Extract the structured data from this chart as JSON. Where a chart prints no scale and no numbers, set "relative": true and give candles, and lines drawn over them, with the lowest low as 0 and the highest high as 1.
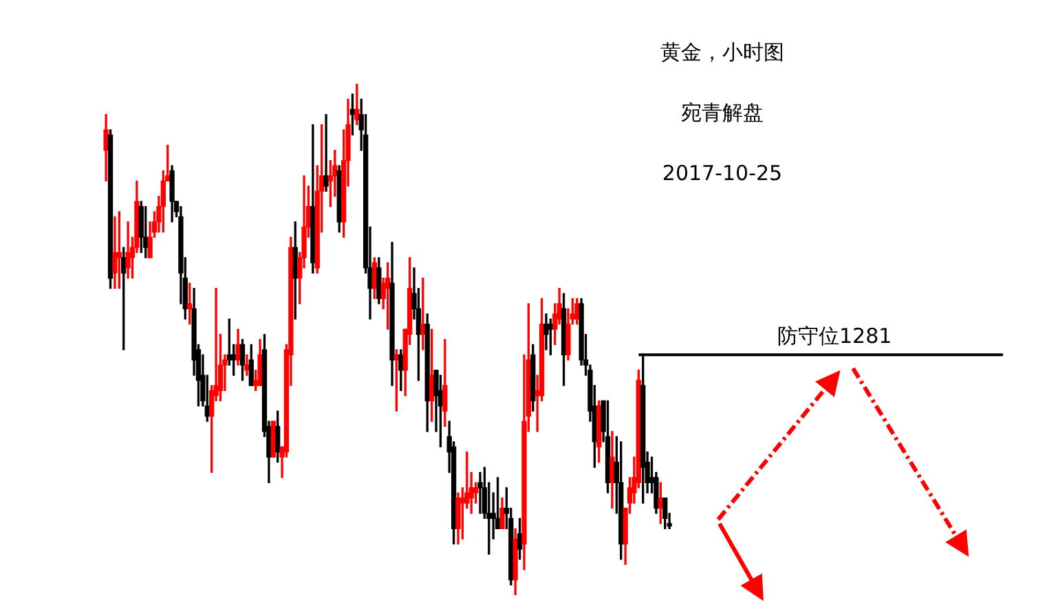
{
  "chart_data": {
    "type": "candlestick",
    "title": "黄金，小时图",
    "subtitle": "宛青解盘",
    "annotations": [
      "2017-10-25"
    ],
    "relative": true,
    "categories": [
      null,
      null,
      null,
      null,
      null,
      null,
      null,
      null,
      null,
      null,
      null,
      null,
      null,
      null,
      null,
      null,
      null,
      null,
      null,
      null,
      null,
      null,
      null,
      null,
      null,
      null,
      null,
      null,
      null,
      null,
      null,
      null,
      null,
      null,
      null,
      null,
      null,
      null,
      null,
      null,
      null,
      null,
      null,
      null,
      null,
      null,
      null,
      null,
      null,
      null,
      null,
      null,
      null,
      null,
      null,
      null,
      null,
      null,
      null,
      null,
      null,
      null,
      null,
      null,
      null,
      null,
      null,
      null,
      null,
      null,
      null,
      null,
      null,
      null,
      null,
      null,
      null,
      null,
      null,
      null,
      null,
      null,
      null,
      null,
      null,
      null,
      null,
      null,
      null,
      null,
      null,
      null,
      null,
      null,
      null,
      null,
      null,
      null,
      null,
      null,
      null,
      null,
      null,
      null,
      null,
      null,
      null,
      null,
      null,
      null,
      null,
      null,
      null,
      null,
      null,
      null,
      null,
      null,
      null,
      null,
      null,
      null,
      null,
      null,
      null,
      null,
      null,
      null,
      null
    ],
    "ohlc": [
      [
        0.87,
        0.94,
        0.81,
        0.91
      ],
      [
        0.9,
        0.91,
        0.6,
        0.62
      ],
      [
        0.63,
        0.74,
        0.6,
        0.67
      ],
      [
        0.66,
        0.75,
        0.6,
        0.67
      ],
      [
        0.66,
        0.68,
        0.48,
        0.63
      ],
      [
        0.64,
        0.73,
        0.62,
        0.67
      ],
      [
        0.66,
        0.7,
        0.62,
        0.68
      ],
      [
        0.68,
        0.81,
        0.67,
        0.77
      ],
      [
        0.76,
        0.77,
        0.67,
        0.7
      ],
      [
        0.7,
        0.76,
        0.66,
        0.68
      ],
      [
        0.66,
        0.73,
        0.66,
        0.7
      ],
      [
        0.71,
        0.75,
        0.7,
        0.73
      ],
      [
        0.73,
        0.78,
        0.71,
        0.76
      ],
      [
        0.76,
        0.83,
        0.71,
        0.81
      ],
      [
        0.81,
        0.88,
        0.81,
        0.82
      ],
      [
        0.83,
        0.84,
        0.73,
        0.77
      ],
      [
        0.77,
        0.77,
        0.74,
        0.75
      ],
      [
        0.74,
        0.76,
        0.57,
        0.63
      ],
      [
        0.62,
        0.66,
        0.54,
        0.56
      ],
      [
        0.56,
        0.61,
        0.53,
        0.57
      ],
      [
        0.56,
        0.6,
        0.43,
        0.46
      ],
      [
        0.48,
        0.49,
        0.37,
        0.42
      ],
      [
        0.43,
        0.47,
        0.37,
        0.38
      ],
      [
        0.37,
        0.43,
        0.34,
        0.35
      ],
      [
        0.35,
        0.41,
        0.24,
        0.4
      ],
      [
        0.39,
        0.6,
        0.38,
        0.41
      ],
      [
        0.4,
        0.51,
        0.38,
        0.45
      ],
      [
        0.45,
        0.47,
        0.4,
        0.46
      ],
      [
        0.47,
        0.54,
        0.45,
        0.46
      ],
      [
        0.47,
        0.49,
        0.43,
        0.46
      ],
      [
        0.46,
        0.52,
        0.45,
        0.49
      ],
      [
        0.49,
        0.5,
        0.42,
        0.45
      ],
      [
        0.44,
        0.47,
        0.43,
        0.45
      ],
      [
        0.46,
        0.49,
        0.41,
        0.41
      ],
      [
        0.41,
        0.44,
        0.4,
        0.42
      ],
      [
        0.41,
        0.5,
        0.41,
        0.47
      ],
      [
        0.48,
        0.51,
        0.31,
        0.32
      ],
      [
        0.33,
        0.34,
        0.22,
        0.27
      ],
      [
        0.27,
        0.34,
        0.27,
        0.34
      ],
      [
        0.33,
        0.36,
        0.26,
        0.28
      ],
      [
        0.27,
        0.29,
        0.23,
        0.29
      ],
      [
        0.28,
        0.49,
        0.27,
        0.48
      ],
      [
        0.47,
        0.7,
        0.41,
        0.68
      ],
      [
        0.68,
        0.73,
        0.54,
        0.62
      ],
      [
        0.62,
        0.67,
        0.57,
        0.66
      ],
      [
        0.66,
        0.82,
        0.64,
        0.72
      ],
      [
        0.72,
        0.8,
        0.7,
        0.76
      ],
      [
        0.76,
        0.92,
        0.63,
        0.65
      ],
      [
        0.64,
        0.84,
        0.63,
        0.79
      ],
      [
        0.79,
        0.92,
        0.71,
        0.82
      ],
      [
        0.82,
        0.94,
        0.79,
        0.8
      ],
      [
        0.81,
        0.85,
        0.76,
        0.82
      ],
      [
        0.82,
        0.87,
        0.78,
        0.84
      ],
      [
        0.83,
        0.84,
        0.71,
        0.73
      ],
      [
        0.73,
        0.91,
        0.7,
        0.85
      ],
      [
        0.85,
        0.97,
        0.8,
        0.92
      ],
      [
        0.95,
        0.98,
        0.9,
        0.94
      ],
      [
        0.93,
        1,
        0.92,
        0.95
      ],
      [
        0.94,
        0.97,
        0.87,
        0.91
      ],
      [
        0.9,
        0.94,
        0.63,
        0.64
      ],
      [
        0.64,
        0.72,
        0.54,
        0.6
      ],
      [
        0.6,
        0.66,
        0.58,
        0.65
      ],
      [
        0.64,
        0.66,
        0.57,
        0.58
      ],
      [
        0.58,
        0.62,
        0.56,
        0.61
      ],
      [
        0.6,
        0.65,
        0.52,
        0.62
      ],
      [
        0.61,
        0.69,
        0.41,
        0.46
      ],
      [
        0.46,
        0.48,
        0.36,
        0.47
      ],
      [
        0.47,
        0.48,
        0.4,
        0.44
      ],
      [
        0.44,
        0.52,
        0.39,
        0.52
      ],
      [
        0.51,
        0.66,
        0.49,
        0.6
      ],
      [
        0.59,
        0.64,
        0.54,
        0.56
      ],
      [
        0.56,
        0.6,
        0.42,
        0.51
      ],
      [
        0.51,
        0.62,
        0.48,
        0.53
      ],
      [
        0.53,
        0.55,
        0.32,
        0.38
      ],
      [
        0.38,
        0.52,
        0.34,
        0.43
      ],
      [
        0.44,
        0.44,
        0.32,
        0.39
      ],
      [
        0.4,
        0.43,
        0.29,
        0.37
      ],
      [
        0.36,
        0.5,
        0.33,
        0.41
      ],
      [
        0.31,
        0.34,
        0.24,
        0.28
      ],
      [
        0.29,
        0.3,
        0.1,
        0.13
      ],
      [
        0.13,
        0.2,
        0.1,
        0.19
      ],
      [
        0.18,
        0.21,
        0.11,
        0.19
      ],
      [
        0.18,
        0.28,
        0.17,
        0.2
      ],
      [
        0.19,
        0.24,
        0.16,
        0.21
      ],
      [
        0.2,
        0.22,
        0.18,
        0.21
      ],
      [
        0.22,
        0.24,
        0.16,
        0.21
      ],
      [
        0.21,
        0.25,
        0.15,
        0.16
      ],
      [
        0.16,
        0.22,
        0.08,
        0.15
      ],
      [
        0.16,
        0.2,
        0.11,
        0.15
      ],
      [
        0.15,
        0.23,
        0.13,
        0.13
      ],
      [
        0.13,
        0.19,
        0.13,
        0.17
      ],
      [
        0.17,
        0.21,
        0.13,
        0.16
      ],
      [
        0.15,
        0.17,
        0.02,
        0.03
      ],
      [
        0.03,
        0.13,
        0,
        0.11
      ],
      [
        0.12,
        0.15,
        0.07,
        0.09
      ],
      [
        0.1,
        0.47,
        0.05,
        0.34
      ],
      [
        0.35,
        0.57,
        0.32,
        0.46
      ],
      [
        0.47,
        0.49,
        0.36,
        0.38
      ],
      [
        0.39,
        0.43,
        0.32,
        0.4
      ],
      [
        0.39,
        0.58,
        0.38,
        0.53
      ],
      [
        0.53,
        0.55,
        0.48,
        0.51
      ],
      [
        0.53,
        0.54,
        0.47,
        0.52
      ],
      [
        0.52,
        0.57,
        0.49,
        0.55
      ],
      [
        0.54,
        0.6,
        0.53,
        0.57
      ],
      [
        0.56,
        0.59,
        0.41,
        0.47
      ],
      [
        0.47,
        0.56,
        0.46,
        0.53
      ],
      [
        0.54,
        0.58,
        0.53,
        0.55
      ],
      [
        0.54,
        0.58,
        0.53,
        0.57
      ],
      [
        0.57,
        0.58,
        0.45,
        0.46
      ],
      [
        0.46,
        0.51,
        0.43,
        0.45
      ],
      [
        0.44,
        0.45,
        0.34,
        0.36
      ],
      [
        0.37,
        0.41,
        0.25,
        0.3
      ],
      [
        0.29,
        0.38,
        0.26,
        0.37
      ],
      [
        0.38,
        0.38,
        0.3,
        0.32
      ],
      [
        0.31,
        0.38,
        0.2,
        0.22
      ],
      [
        0.22,
        0.32,
        0.17,
        0.27
      ],
      [
        0.26,
        0.31,
        0.16,
        0.22
      ],
      [
        0.22,
        0.3,
        0.07,
        0.1
      ],
      [
        0.1,
        0.17,
        0.06,
        0.17
      ],
      [
        0.18,
        0.23,
        0.16,
        0.21
      ],
      [
        0.2,
        0.27,
        0.18,
        0.23
      ],
      [
        0.22,
        0.44,
        0.21,
        0.42
      ],
      [
        0.41,
        0.47,
        0.18,
        0.25
      ],
      [
        0.26,
        0.28,
        0.2,
        0.22
      ],
      [
        0.23,
        0.27,
        0.2,
        0.22
      ],
      [
        0.23,
        0.24,
        0.16,
        0.17
      ],
      [
        0.17,
        0.22,
        0.14,
        0.19
      ],
      [
        0.19,
        0.19,
        0.13,
        0.15
      ],
      [
        0.14,
        0.16,
        0.13,
        0.135
      ]
    ],
    "colors": [
      "#ff0000",
      "#000000",
      "#ff0000",
      "#ff0000",
      "#000000",
      "#ff0000",
      "#ff0000",
      "#ff0000",
      "#000000",
      "#000000",
      "#ff0000",
      "#ff0000",
      "#ff0000",
      "#ff0000",
      "#ff0000",
      "#000000",
      "#000000",
      "#000000",
      "#000000",
      "#ff0000",
      "#000000",
      "#000000",
      "#000000",
      "#000000",
      "#ff0000",
      "#ff0000",
      "#ff0000",
      "#ff0000",
      "#000000",
      "#000000",
      "#ff0000",
      "#000000",
      "#ff0000",
      "#000000",
      "#ff0000",
      "#ff0000",
      "#000000",
      "#000000",
      "#ff0000",
      "#000000",
      "#ff0000",
      "#ff0000",
      "#ff0000",
      "#000000",
      "#ff0000",
      "#ff0000",
      "#ff0000",
      "#000000",
      "#ff0000",
      "#ff0000",
      "#000000",
      "#ff0000",
      "#ff0000",
      "#000000",
      "#ff0000",
      "#ff0000",
      "#000000",
      "#ff0000",
      "#000000",
      "#000000",
      "#000000",
      "#ff0000",
      "#000000",
      "#ff0000",
      "#ff0000",
      "#000000",
      "#ff0000",
      "#000000",
      "#ff0000",
      "#ff0000",
      "#000000",
      "#000000",
      "#ff0000",
      "#000000",
      "#ff0000",
      "#000000",
      "#000000",
      "#ff0000",
      "#000000",
      "#000000",
      "#ff0000",
      "#ff0000",
      "#ff0000",
      "#ff0000",
      "#ff0000",
      "#000000",
      "#000000",
      "#000000",
      "#000000",
      "#000000",
      "#ff0000",
      "#000000",
      "#000000",
      "#ff0000",
      "#000000",
      "#ff0000",
      "#ff0000",
      "#000000",
      "#ff0000",
      "#ff0000",
      "#000000",
      "#000000",
      "#ff0000",
      "#ff0000",
      "#000000",
      "#ff0000",
      "#ff0000",
      "#ff0000",
      "#000000",
      "#000000",
      "#000000",
      "#000000",
      "#ff0000",
      "#000000",
      "#000000",
      "#ff0000",
      "#000000",
      "#000000",
      "#ff0000",
      "#ff0000",
      "#ff0000",
      "#ff0000",
      "#000000",
      "#000000",
      "#000000",
      "#000000",
      "#ff0000",
      "#000000",
      "#000000"
    ],
    "ref_lines": [
      {
        "axis": "y",
        "value": 0.47,
        "label": "防守位1281",
        "color": "#000000"
      }
    ]
  }
}
